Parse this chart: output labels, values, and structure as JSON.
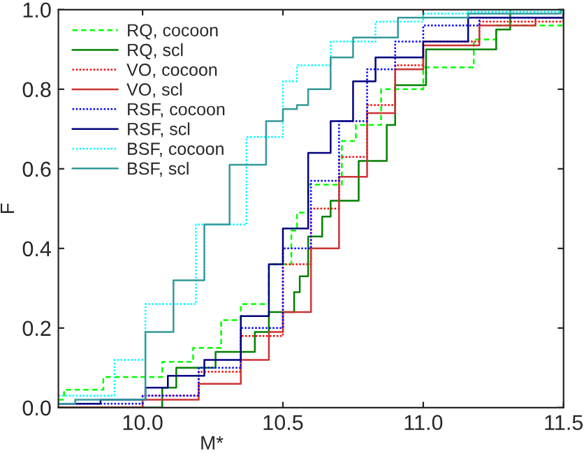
{
  "chart_data": {
    "type": "step",
    "xlabel": "M*",
    "ylabel": "F",
    "xlim": [
      9.7,
      11.5
    ],
    "xticks": [
      {
        "value": 10.0,
        "label": "10.0"
      },
      {
        "value": 10.5,
        "label": "10.5"
      },
      {
        "value": 11.0,
        "label": "11.0"
      },
      {
        "value": 11.5,
        "label": "11.5"
      }
    ],
    "ylim": [
      0,
      1
    ],
    "yticks": [
      {
        "value": 0,
        "label": "0.0"
      },
      {
        "value": 0.2,
        "label": "0.2"
      },
      {
        "value": 0.4,
        "label": "0.4"
      },
      {
        "value": 0.6,
        "label": "0.6"
      },
      {
        "value": 0.8,
        "label": "0.8"
      },
      {
        "value": 1,
        "label": "1.0"
      }
    ],
    "grid": false,
    "legend": "top left",
    "series": [
      {
        "name": "RQ, cocoon",
        "color": "#00ff00",
        "line_style": "dashed",
        "x": [
          9.7,
          9.72,
          9.86,
          10.07,
          10.18,
          10.28,
          10.35,
          10.45,
          10.53,
          10.55,
          10.59,
          10.71,
          10.76,
          10.85,
          11.0,
          11.18,
          11.26,
          11.49,
          11.5
        ],
        "values": [
          0.02,
          0.045,
          0.077,
          0.115,
          0.15,
          0.22,
          0.26,
          0.36,
          0.445,
          0.49,
          0.56,
          0.67,
          0.71,
          0.8,
          0.855,
          0.925,
          0.96,
          0.96,
          1.0
        ]
      },
      {
        "name": "RQ, scl",
        "color": "#008000",
        "line_style": "solid",
        "x": [
          9.7,
          10.07,
          10.12,
          10.26,
          10.4,
          10.45,
          10.54,
          10.56,
          10.59,
          10.64,
          10.67,
          10.77,
          10.87,
          10.9,
          11.01,
          11.26,
          11.31,
          11.5
        ],
        "values": [
          0,
          0.05,
          0.1,
          0.14,
          0.19,
          0.24,
          0.29,
          0.33,
          0.43,
          0.48,
          0.52,
          0.62,
          0.71,
          0.81,
          0.9,
          0.95,
          1.0,
          1.0
        ]
      },
      {
        "name": "VO, cocoon",
        "color": "#ff0000",
        "line_style": "dotted",
        "x": [
          9.7,
          10.0,
          10.2,
          10.35,
          10.5,
          10.6,
          10.7,
          10.8,
          10.9,
          11.0,
          11.2,
          11.5
        ],
        "values": [
          0.0,
          0.03,
          0.09,
          0.18,
          0.36,
          0.5,
          0.63,
          0.76,
          0.86,
          0.92,
          0.97,
          0.99
        ]
      },
      {
        "name": "VO, scl",
        "color": "#cc3333",
        "line_style": "solid",
        "x": [
          9.7,
          10.0,
          10.2,
          10.35,
          10.45,
          10.5,
          10.6,
          10.7,
          10.8,
          10.9,
          11.0,
          11.2,
          11.4,
          11.5
        ],
        "values": [
          0.0,
          0.02,
          0.06,
          0.12,
          0.19,
          0.24,
          0.4,
          0.58,
          0.74,
          0.85,
          0.91,
          0.96,
          0.98,
          0.99
        ]
      },
      {
        "name": "RSF, cocoon",
        "color": "#0000ff",
        "line_style": "dotted",
        "x": [
          9.7,
          10.0,
          10.2,
          10.35,
          10.5,
          10.6,
          10.7,
          10.8,
          10.9,
          11.0,
          11.2,
          11.5
        ],
        "values": [
          0.01,
          0.03,
          0.1,
          0.2,
          0.4,
          0.57,
          0.72,
          0.85,
          0.92,
          0.96,
          0.98,
          1.0
        ]
      },
      {
        "name": "RSF, scl",
        "color": "#000080",
        "line_style": "solid",
        "x": [
          9.7,
          9.85,
          10.01,
          10.09,
          10.22,
          10.35,
          10.45,
          10.5,
          10.59,
          10.67,
          10.75,
          10.83,
          11.0,
          11.16,
          11.5
        ],
        "values": [
          0.01,
          0.02,
          0.05,
          0.08,
          0.12,
          0.23,
          0.36,
          0.45,
          0.64,
          0.72,
          0.82,
          0.88,
          0.92,
          0.98,
          0.99
        ]
      },
      {
        "name": "BSF, cocoon",
        "color": "#00ffff",
        "line_style": "dotted",
        "x": [
          9.7,
          9.9,
          10.01,
          10.19,
          10.37,
          10.5,
          10.55,
          10.67,
          10.83,
          11.0,
          11.16,
          11.5
        ],
        "values": [
          0.03,
          0.12,
          0.26,
          0.46,
          0.68,
          0.82,
          0.86,
          0.92,
          0.97,
          0.99,
          0.995,
          1.0
        ]
      },
      {
        "name": "BSF, scl",
        "color": "#339999",
        "line_style": "solid",
        "x": [
          9.7,
          9.76,
          10.01,
          10.11,
          10.22,
          10.31,
          10.44,
          10.5,
          10.55,
          10.59,
          10.67,
          10.75,
          10.91,
          11.16,
          11.49
        ],
        "values": [
          0.01,
          0.02,
          0.19,
          0.32,
          0.46,
          0.61,
          0.72,
          0.75,
          0.76,
          0.8,
          0.88,
          0.93,
          0.98,
          0.99,
          1.0
        ]
      }
    ]
  }
}
